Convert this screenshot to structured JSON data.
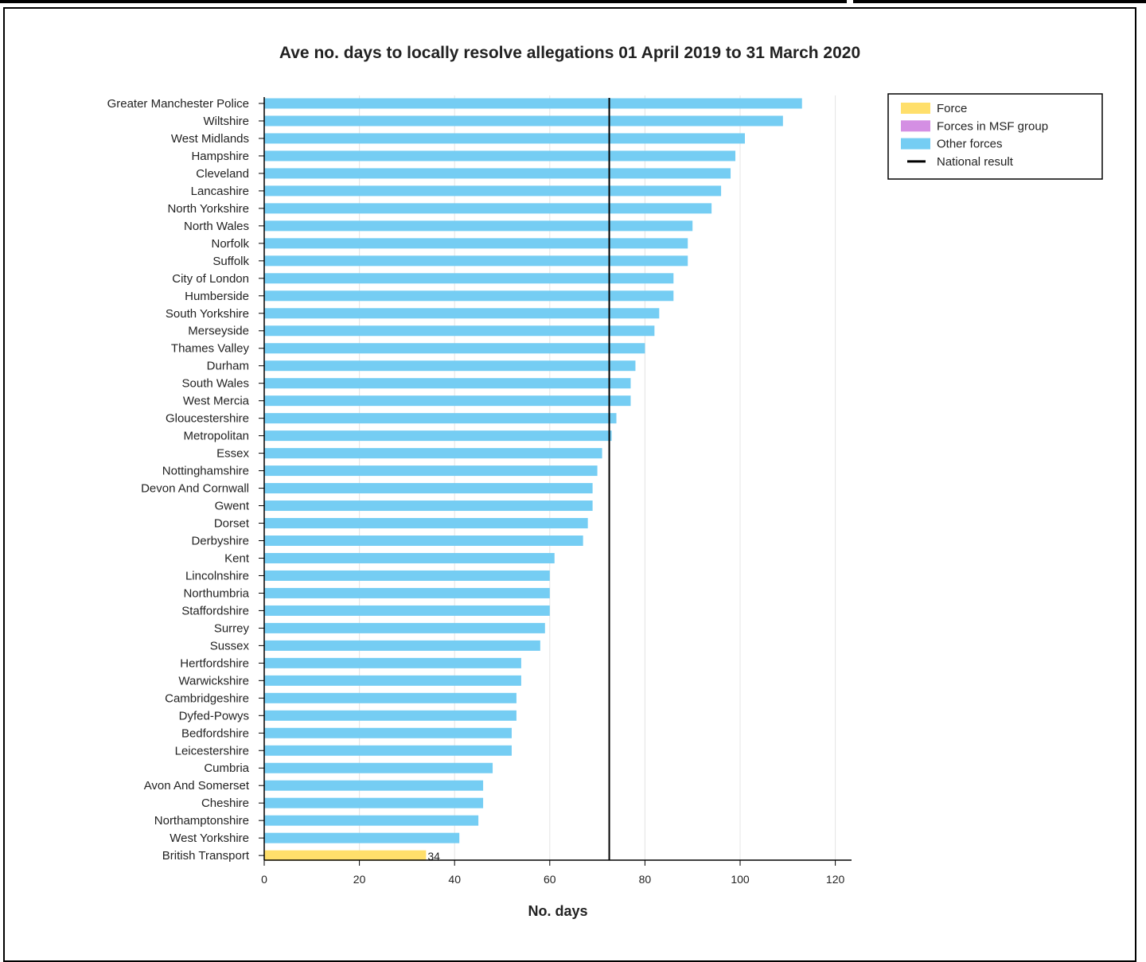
{
  "chart_data": {
    "type": "bar",
    "orientation": "horizontal",
    "title": "Ave no. days to locally resolve allegations 01 April 2019 to 31 March 2020",
    "xlabel": "No. days",
    "ylabel": "",
    "xlim": [
      0,
      123
    ],
    "xticks": [
      "0",
      "20",
      "40",
      "60",
      "80",
      "100",
      "120"
    ],
    "grid": "vertical",
    "legend_position": "top-right",
    "legend": [
      {
        "label": "Force",
        "color": "#ffdf6b",
        "kind": "swatch"
      },
      {
        "label": "Forces in MSF group",
        "color": "#d48fe3",
        "kind": "swatch"
      },
      {
        "label": "Other forces",
        "color": "#75cdf3",
        "kind": "swatch"
      },
      {
        "label": "National result",
        "color": "#000000",
        "kind": "line"
      }
    ],
    "national_result": 72.5,
    "categories": [
      "Greater Manchester Police",
      "Wiltshire",
      "West Midlands",
      "Hampshire",
      "Cleveland",
      "Lancashire",
      "North Yorkshire",
      "North Wales",
      "Norfolk",
      "Suffolk",
      "City of London",
      "Humberside",
      "South Yorkshire",
      "Merseyside",
      "Thames Valley",
      "Durham",
      "South Wales",
      "West Mercia",
      "Gloucestershire",
      "Metropolitan",
      "Essex",
      "Nottinghamshire",
      "Devon And Cornwall",
      "Gwent",
      "Dorset",
      "Derbyshire",
      "Kent",
      "Lincolnshire",
      "Northumbria",
      "Staffordshire",
      "Surrey",
      "Sussex",
      "Hertfordshire",
      "Warwickshire",
      "Cambridgeshire",
      "Dyfed-Powys",
      "Bedfordshire",
      "Leicestershire",
      "Cumbria",
      "Avon And Somerset",
      "Cheshire",
      "Northamptonshire",
      "West Yorkshire",
      "British Transport"
    ],
    "values": [
      113,
      109,
      101,
      99,
      98,
      96,
      94,
      90,
      89,
      89,
      86,
      86,
      83,
      82,
      80,
      78,
      77,
      77,
      74,
      73,
      71,
      70,
      69,
      69,
      68,
      67,
      61,
      60,
      60,
      60,
      59,
      58,
      54,
      54,
      53,
      53,
      52,
      52,
      48,
      46,
      46,
      45,
      41,
      34
    ],
    "groups": [
      "other",
      "other",
      "other",
      "other",
      "other",
      "other",
      "other",
      "other",
      "other",
      "other",
      "other",
      "other",
      "other",
      "other",
      "other",
      "other",
      "other",
      "other",
      "other",
      "other",
      "other",
      "other",
      "other",
      "other",
      "other",
      "other",
      "other",
      "other",
      "other",
      "other",
      "other",
      "other",
      "other",
      "other",
      "other",
      "other",
      "other",
      "other",
      "other",
      "other",
      "other",
      "other",
      "other",
      "force"
    ],
    "data_labels": [
      {
        "category": "British Transport",
        "text": "34"
      }
    ]
  }
}
